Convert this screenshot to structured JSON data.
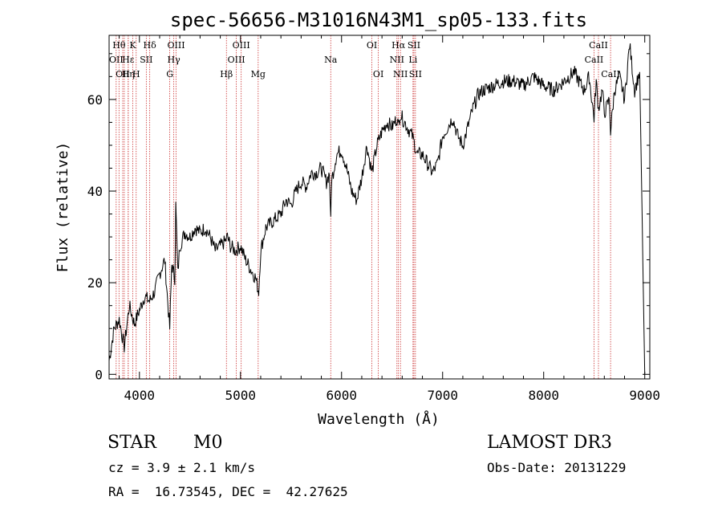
{
  "chart_data": {
    "type": "line",
    "title": "spec-56656-M31016N43M1_sp05-133.fits",
    "xlabel": "Wavelength (Å)",
    "ylabel": "Flux (relative)",
    "xlim": [
      3700,
      9050
    ],
    "ylim": [
      -1,
      74
    ],
    "xticks": [
      4000,
      5000,
      6000,
      7000,
      8000,
      9000
    ],
    "yticks": [
      0,
      20,
      40,
      60
    ],
    "series": [
      {
        "name": "spectrum",
        "x": [
          3700,
          3750,
          3800,
          3850,
          3900,
          3950,
          4000,
          4050,
          4100,
          4150,
          4200,
          4250,
          4300,
          4320,
          4350,
          4360,
          4380,
          4400,
          4450,
          4500,
          4550,
          4600,
          4650,
          4700,
          4750,
          4800,
          4850,
          4870,
          4900,
          4950,
          5000,
          5050,
          5100,
          5150,
          5180,
          5200,
          5250,
          5300,
          5350,
          5400,
          5450,
          5500,
          5550,
          5600,
          5650,
          5700,
          5750,
          5800,
          5850,
          5880,
          5893,
          5900,
          5950,
          6000,
          6050,
          6100,
          6150,
          6200,
          6250,
          6300,
          6350,
          6400,
          6450,
          6500,
          6550,
          6563,
          6580,
          6600,
          6650,
          6700,
          6750,
          6800,
          6850,
          6900,
          6950,
          7000,
          7050,
          7100,
          7150,
          7200,
          7250,
          7300,
          7350,
          7400,
          7500,
          7600,
          7700,
          7800,
          7900,
          8000,
          8100,
          8200,
          8300,
          8400,
          8450,
          8498,
          8520,
          8542,
          8580,
          8600,
          8650,
          8662,
          8700,
          8750,
          8800,
          8850,
          8900,
          8950,
          9000
        ],
        "y": [
          3,
          10,
          12,
          6,
          15,
          11,
          14,
          17,
          16,
          18,
          22,
          25,
          10,
          24,
          21,
          37,
          22,
          28,
          31,
          30,
          32,
          31,
          32,
          30,
          27,
          28,
          29,
          30,
          28,
          27,
          28,
          25,
          23,
          21,
          18,
          27,
          32,
          33,
          34,
          35,
          38,
          37,
          40,
          42,
          41,
          44,
          44,
          45,
          42,
          44,
          33,
          42,
          48,
          49,
          45,
          40,
          38,
          43,
          50,
          44,
          50,
          53,
          55,
          54,
          56,
          54,
          57,
          56,
          54,
          52,
          48,
          48,
          46,
          44,
          46,
          52,
          54,
          56,
          52,
          50,
          54,
          58,
          61,
          62,
          63,
          64,
          64,
          63,
          65,
          63,
          62,
          64,
          66,
          62,
          65,
          56,
          64,
          58,
          62,
          57,
          60,
          53,
          62,
          65,
          60,
          72,
          62,
          66,
          0
        ]
      }
    ],
    "lines": [
      {
        "wl": 3770,
        "label": "OII",
        "row": 2
      },
      {
        "wl": 3798,
        "label": "Hθ",
        "row": 1
      },
      {
        "wl": 3835,
        "label": "OII",
        "row": 3
      },
      {
        "wl": 3850,
        "label": "",
        "row": 0
      },
      {
        "wl": 3889,
        "label": "Hε",
        "row": 2
      },
      {
        "wl": 3889,
        "label": "Hη",
        "row": 3
      },
      {
        "wl": 3934,
        "label": "K",
        "row": 1
      },
      {
        "wl": 3968,
        "label": "H",
        "row": 3
      },
      {
        "wl": 4068,
        "label": "SII",
        "row": 2
      },
      {
        "wl": 4102,
        "label": "Hδ",
        "row": 1
      },
      {
        "wl": 4300,
        "label": "G",
        "row": 3
      },
      {
        "wl": 4340,
        "label": "Hγ",
        "row": 2
      },
      {
        "wl": 4363,
        "label": "OIII",
        "row": 1
      },
      {
        "wl": 4861,
        "label": "Hβ",
        "row": 3
      },
      {
        "wl": 4959,
        "label": "OIII",
        "row": 2
      },
      {
        "wl": 5007,
        "label": "OIII",
        "row": 1
      },
      {
        "wl": 5175,
        "label": "Mg",
        "row": 3
      },
      {
        "wl": 5893,
        "label": "Na",
        "row": 2
      },
      {
        "wl": 6300,
        "label": "OI",
        "row": 1
      },
      {
        "wl": 6364,
        "label": "OI",
        "row": 3
      },
      {
        "wl": 6548,
        "label": "NII",
        "row": 2
      },
      {
        "wl": 6563,
        "label": "Hα",
        "row": 1
      },
      {
        "wl": 6583,
        "label": "NII",
        "row": 3
      },
      {
        "wl": 6707,
        "label": "Li",
        "row": 2
      },
      {
        "wl": 6716,
        "label": "SII",
        "row": 1
      },
      {
        "wl": 6731,
        "label": "SII",
        "row": 3
      },
      {
        "wl": 8498,
        "label": "CaII",
        "row": 2
      },
      {
        "wl": 8542,
        "label": "CaII",
        "row": 1
      },
      {
        "wl": 8662,
        "label": "CaII",
        "row": 3
      }
    ]
  },
  "info": {
    "class": "STAR",
    "subclass": "M0",
    "survey": "LAMOST DR3",
    "cz": "cz = 3.9 ± 2.1 km/s",
    "obs_date": "Obs-Date: 20131229",
    "radec": "RA =  16.73545, DEC =  42.27625"
  },
  "colors": {
    "line_marker": "#cc3333",
    "ink": "#000000"
  }
}
